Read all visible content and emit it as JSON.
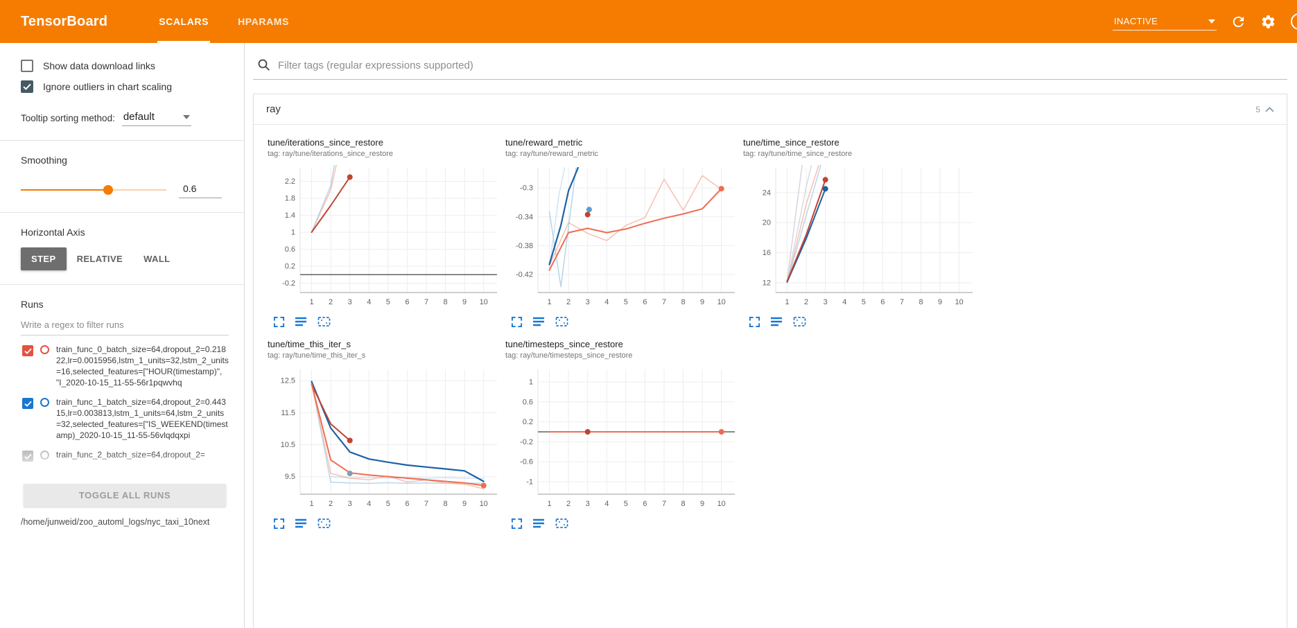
{
  "app": {
    "title": "TensorBoard",
    "tabs": [
      {
        "label": "SCALARS",
        "active": true
      },
      {
        "label": "HPARAMS",
        "active": false
      }
    ],
    "status": "INACTIVE",
    "accent_color": "#f57c00"
  },
  "sidebar": {
    "checkboxes": [
      {
        "label": "Show data download links",
        "checked": false
      },
      {
        "label": "Ignore outliers in chart scaling",
        "checked": true
      }
    ],
    "tooltip_sorting": {
      "label": "Tooltip sorting method:",
      "value": "default"
    },
    "smoothing": {
      "label": "Smoothing",
      "value": "0.6",
      "percent": 60
    },
    "horizontal_axis": {
      "label": "Horizontal Axis",
      "options": [
        {
          "label": "STEP",
          "selected": true
        },
        {
          "label": "RELATIVE",
          "selected": false
        },
        {
          "label": "WALL",
          "selected": false
        }
      ]
    },
    "runs": {
      "label": "Runs",
      "filter_placeholder": "Write a regex to filter runs",
      "items": [
        {
          "label": "train_func_0_batch_size=64,dropout_2=0.21822,lr=0.0015956,lstm_1_units=32,lstm_2_units=16,selected_features=[\"HOUR(timestamp)\", \"I_2020-10-15_11-55-56r1pqwvhq",
          "checked": true,
          "color": "#e45241"
        },
        {
          "label": "train_func_1_batch_size=64,dropout_2=0.44315,lr=0.003813,lstm_1_units=64,lstm_2_units=32,selected_features=[\"IS_WEEKEND(timestamp)_2020-10-15_11-55-56vlqdqxpi",
          "checked": true,
          "color": "#1976d2"
        },
        {
          "label": "train_func_2_batch_size=64,dropout_2=",
          "checked": true,
          "color": "#bdbdbd"
        }
      ],
      "toggle_all_label": "TOGGLE ALL RUNS",
      "log_path": "/home/junweid/zoo_automl_logs/nyc_taxi_10next"
    }
  },
  "main": {
    "filter_placeholder": "Filter tags (regular expressions supported)",
    "section": {
      "title": "ray",
      "count": "5"
    }
  },
  "chart_data": [
    {
      "type": "line",
      "title": "tune/iterations_since_restore",
      "tag_label": "tag: ray/tune/iterations_since_restore",
      "xlim": [
        0.4,
        10.7
      ],
      "ylim": [
        -0.42,
        2.52
      ],
      "xticks": [
        1,
        2,
        3,
        4,
        5,
        6,
        7,
        8,
        9,
        10
      ],
      "yticks": [
        -0.2,
        0.2,
        0.6,
        1,
        1.4,
        1.8,
        2.2
      ],
      "series": [
        {
          "name": "zero-baseline",
          "color": "#616161",
          "width": 1.5,
          "opacity": 1,
          "points": [
            [
              0.4,
              0
            ],
            [
              10.7,
              0
            ]
          ]
        },
        {
          "name": "train_func_0-raw",
          "color": "#f6b09a",
          "width": 1.5,
          "opacity": 0.8,
          "points": [
            [
              1,
              1
            ],
            [
              2,
              2
            ],
            [
              2.7,
              3.4
            ]
          ]
        },
        {
          "name": "train_func_1-raw",
          "color": "#a9cde9",
          "width": 1.5,
          "opacity": 0.8,
          "points": [
            [
              1,
              1
            ],
            [
              2,
              2.1
            ],
            [
              2.5,
              3.4
            ]
          ]
        },
        {
          "name": "train_func_0-smoothed",
          "color": "#bf4430",
          "width": 2,
          "opacity": 1,
          "points": [
            [
              1,
              1
            ],
            [
              2,
              1.63
            ],
            [
              3,
              2.3
            ]
          ],
          "end_dot": true
        }
      ]
    },
    {
      "type": "line",
      "title": "tune/reward_metric",
      "tag_label": "tag: ray/tune/reward_metric",
      "xlim": [
        0.4,
        10.7
      ],
      "ylim": [
        -0.445,
        -0.272
      ],
      "xticks": [
        1,
        2,
        3,
        4,
        5,
        6,
        7,
        8,
        9,
        10
      ],
      "yticks": [
        -0.42,
        -0.38,
        -0.34,
        -0.3
      ],
      "series": [
        {
          "name": "orange-raw",
          "color": "#f6b09a",
          "width": 1.5,
          "opacity": 0.8,
          "points": [
            [
              1,
              -0.408
            ],
            [
              2,
              -0.348
            ],
            [
              3,
              -0.363
            ],
            [
              4,
              -0.373
            ],
            [
              5,
              -0.352
            ],
            [
              6,
              -0.341
            ],
            [
              7,
              -0.288
            ],
            [
              8,
              -0.331
            ],
            [
              9,
              -0.283
            ],
            [
              10,
              -0.302
            ]
          ]
        },
        {
          "name": "blue-raw-1",
          "color": "#a9cde9",
          "width": 1.5,
          "opacity": 0.85,
          "points": [
            [
              1,
              -0.333
            ],
            [
              1.6,
              -0.437
            ],
            [
              2.4,
              -0.272
            ]
          ]
        },
        {
          "name": "blue-raw-2",
          "color": "#a9cde9",
          "width": 1.5,
          "opacity": 0.55,
          "points": [
            [
              1,
              -0.41
            ],
            [
              1.5,
              -0.31
            ],
            [
              1.8,
              -0.272
            ]
          ]
        },
        {
          "name": "train_func_1-smoothed",
          "color": "#1c61a5",
          "width": 2.2,
          "opacity": 1,
          "points": [
            [
              1,
              -0.406
            ],
            [
              1.6,
              -0.352
            ],
            [
              2,
              -0.304
            ],
            [
              2.5,
              -0.272
            ]
          ]
        },
        {
          "name": "train_func_2-smoothed",
          "color": "#ee6c51",
          "width": 2,
          "opacity": 1,
          "points": [
            [
              1,
              -0.414
            ],
            [
              2,
              -0.362
            ],
            [
              3,
              -0.356
            ],
            [
              4,
              -0.362
            ],
            [
              5,
              -0.357
            ],
            [
              6,
              -0.349
            ],
            [
              7,
              -0.342
            ],
            [
              8,
              -0.336
            ],
            [
              9,
              -0.329
            ],
            [
              10,
              -0.301
            ]
          ],
          "end_dot": true
        }
      ],
      "dots": [
        {
          "x": 3,
          "y": -0.337,
          "color": "#bf4430"
        },
        {
          "x": 3.08,
          "y": -0.33,
          "color": "#56a0cf"
        }
      ]
    },
    {
      "type": "line",
      "title": "tune/time_since_restore",
      "tag_label": "tag: ray/tune/time_since_restore",
      "xlim": [
        0.4,
        10.7
      ],
      "ylim": [
        10.7,
        27.3
      ],
      "xticks": [
        1,
        2,
        3,
        4,
        5,
        6,
        7,
        8,
        9,
        10
      ],
      "yticks": [
        12,
        16,
        20,
        24
      ],
      "series": [
        {
          "name": "faded-1",
          "color": "#d5cedd",
          "width": 1.5,
          "opacity": 0.9,
          "points": [
            [
              1,
              12.3
            ],
            [
              1.8,
              28
            ]
          ]
        },
        {
          "name": "faded-2",
          "color": "#cfd8dc",
          "width": 1.5,
          "opacity": 0.9,
          "points": [
            [
              1,
              12.1
            ],
            [
              2,
              24.8
            ],
            [
              2.3,
              28
            ]
          ]
        },
        {
          "name": "orange-raw",
          "color": "#f6b09a",
          "width": 1.5,
          "opacity": 0.8,
          "points": [
            [
              1,
              12
            ],
            [
              2,
              22.5
            ],
            [
              2.7,
              28
            ]
          ]
        },
        {
          "name": "blue-raw",
          "color": "#a9cde9",
          "width": 1.5,
          "opacity": 0.8,
          "points": [
            [
              1,
              12
            ],
            [
              2,
              21
            ],
            [
              2.8,
              28
            ]
          ]
        },
        {
          "name": "train_func_1-smoothed",
          "color": "#1c61a5",
          "width": 2,
          "opacity": 1,
          "points": [
            [
              1,
              12.1
            ],
            [
              2,
              17.9
            ],
            [
              3,
              24.5
            ]
          ],
          "end_dot": true
        },
        {
          "name": "train_func_0-smoothed",
          "color": "#bf4430",
          "width": 2,
          "opacity": 1,
          "points": [
            [
              1,
              12.2
            ],
            [
              2,
              18.4
            ],
            [
              3,
              25.7
            ]
          ],
          "end_dot": true
        }
      ]
    },
    {
      "type": "line",
      "title": "tune/time_this_iter_s",
      "tag_label": "tag: ray/tune/time_this_iter_s",
      "xlim": [
        0.4,
        10.7
      ],
      "ylim": [
        8.95,
        12.85
      ],
      "xticks": [
        1,
        2,
        3,
        4,
        5,
        6,
        7,
        8,
        9,
        10
      ],
      "yticks": [
        9.5,
        10.5,
        11.5,
        12.5
      ],
      "series": [
        {
          "name": "blue-raw",
          "color": "#a9cde9",
          "width": 1.5,
          "opacity": 0.8,
          "points": [
            [
              1,
              12.45
            ],
            [
              2,
              9.33
            ],
            [
              3,
              9.3
            ],
            [
              4,
              9.29
            ],
            [
              5,
              9.31
            ],
            [
              6,
              9.29
            ],
            [
              7,
              9.3
            ],
            [
              8,
              9.29
            ],
            [
              9,
              9.3
            ],
            [
              10,
              9.29
            ]
          ]
        },
        {
          "name": "blue-raw-2",
          "color": "#a9cde9",
          "width": 1.5,
          "opacity": 0.55,
          "points": [
            [
              2,
              9.5
            ],
            [
              3,
              9.46
            ],
            [
              4,
              9.48
            ],
            [
              5,
              9.45
            ],
            [
              6,
              9.47
            ],
            [
              7,
              9.45
            ],
            [
              8,
              9.47
            ],
            [
              9,
              9.45
            ],
            [
              10,
              9.44
            ]
          ]
        },
        {
          "name": "orange-raw",
          "color": "#f6b09a",
          "width": 1.5,
          "opacity": 0.8,
          "points": [
            [
              1,
              12.4
            ],
            [
              2,
              9.6
            ],
            [
              3,
              9.45
            ],
            [
              4,
              9.4
            ],
            [
              5,
              9.52
            ],
            [
              6,
              9.33
            ],
            [
              7,
              9.4
            ],
            [
              8,
              9.3
            ],
            [
              9,
              9.26
            ],
            [
              10,
              9.12
            ]
          ]
        },
        {
          "name": "train_func_1-smoothed",
          "color": "#1c61a5",
          "width": 2.2,
          "opacity": 1,
          "points": [
            [
              1,
              12.47
            ],
            [
              2,
              11.02
            ],
            [
              3,
              10.27
            ],
            [
              4,
              10.05
            ],
            [
              5,
              9.95
            ],
            [
              6,
              9.86
            ],
            [
              7,
              9.8
            ],
            [
              8,
              9.74
            ],
            [
              9,
              9.68
            ],
            [
              10,
              9.35
            ]
          ]
        },
        {
          "name": "train_func_0-smoothed",
          "color": "#bf4430",
          "width": 2,
          "opacity": 1,
          "points": [
            [
              1,
              12.38
            ],
            [
              2,
              11.15
            ],
            [
              3,
              10.63
            ]
          ],
          "end_dot": true
        },
        {
          "name": "train_func_2-smoothed",
          "color": "#ee6c51",
          "width": 2,
          "opacity": 1,
          "points": [
            [
              1,
              12.4
            ],
            [
              2,
              10.02
            ],
            [
              3,
              9.62
            ],
            [
              4,
              9.55
            ],
            [
              5,
              9.5
            ],
            [
              6,
              9.45
            ],
            [
              7,
              9.4
            ],
            [
              8,
              9.35
            ],
            [
              9,
              9.3
            ],
            [
              10,
              9.22
            ]
          ],
          "end_dot": true
        }
      ],
      "dots": [
        {
          "x": 3,
          "y": 9.6,
          "color": "#7fa0b4"
        }
      ]
    },
    {
      "type": "line",
      "title": "tune/timesteps_since_restore",
      "tag_label": "tag: ray/tune/timesteps_since_restore",
      "xlim": [
        0.4,
        10.7
      ],
      "ylim": [
        -1.25,
        1.25
      ],
      "xticks": [
        1,
        2,
        3,
        4,
        5,
        6,
        7,
        8,
        9,
        10
      ],
      "yticks": [
        -1,
        -0.6,
        -0.2,
        0.2,
        0.6,
        1
      ],
      "series": [
        {
          "name": "zero-baseline",
          "color": "#616161",
          "width": 1.5,
          "opacity": 1,
          "points": [
            [
              0.4,
              0
            ],
            [
              10.7,
              0
            ]
          ]
        },
        {
          "name": "train_func_2-smoothed",
          "color": "#ee6c51",
          "width": 2,
          "opacity": 1,
          "points": [
            [
              1,
              0
            ],
            [
              10,
              0
            ]
          ],
          "end_dot": true
        }
      ],
      "dots": [
        {
          "x": 3,
          "y": 0,
          "color": "#bf4430"
        }
      ]
    }
  ]
}
